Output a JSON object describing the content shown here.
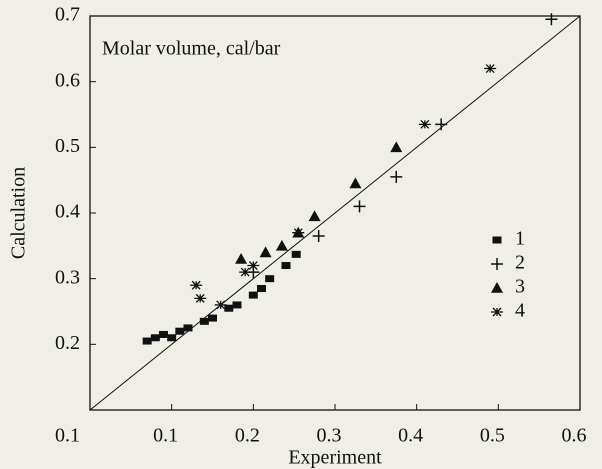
{
  "chart_data": {
    "type": "scatter",
    "annotation": "Molar volume, cal/bar",
    "x_label": "Experiment",
    "y_label": "Calculation",
    "xlim": [
      0.0,
      0.6
    ],
    "xticks": [
      0.1,
      0.2,
      0.3,
      0.4,
      0.5,
      0.6
    ],
    "ylim": [
      0.1,
      0.7
    ],
    "yticks": [
      0.1,
      0.2,
      0.3,
      0.4,
      0.5,
      0.6,
      0.7
    ],
    "series": [
      {
        "name": "1",
        "color": "#111111",
        "marker": "square",
        "x": [
          0.07,
          0.08,
          0.09,
          0.1,
          0.11,
          0.12,
          0.14,
          0.15,
          0.17,
          0.18,
          0.2,
          0.21,
          0.22,
          0.24,
          0.2525
        ],
        "values": [
          0.205,
          0.21,
          0.215,
          0.21,
          0.22,
          0.225,
          0.235,
          0.24,
          0.255,
          0.26,
          0.275,
          0.285,
          0.3,
          0.32,
          0.337
        ]
      },
      {
        "name": "2",
        "color": "#111111",
        "marker": "plus",
        "x": [
          0.565,
          0.43,
          0.375,
          0.33,
          0.28,
          0.2
        ],
        "values": [
          0.695,
          0.535,
          0.455,
          0.41,
          0.365,
          0.31
        ]
      },
      {
        "name": "3",
        "color": "#111111",
        "marker": "triangle",
        "x": [
          0.375,
          0.325,
          0.275,
          0.255,
          0.235,
          0.215,
          0.185
        ],
        "values": [
          0.5,
          0.445,
          0.395,
          0.37,
          0.35,
          0.34,
          0.33
        ]
      },
      {
        "name": "4",
        "color": "#111111",
        "marker": "star",
        "x": [
          0.49,
          0.41,
          0.255,
          0.2,
          0.19,
          0.13,
          0.135,
          0.16
        ],
        "values": [
          0.62,
          0.535,
          0.37,
          0.32,
          0.31,
          0.29,
          0.27,
          0.26
        ]
      }
    ]
  }
}
